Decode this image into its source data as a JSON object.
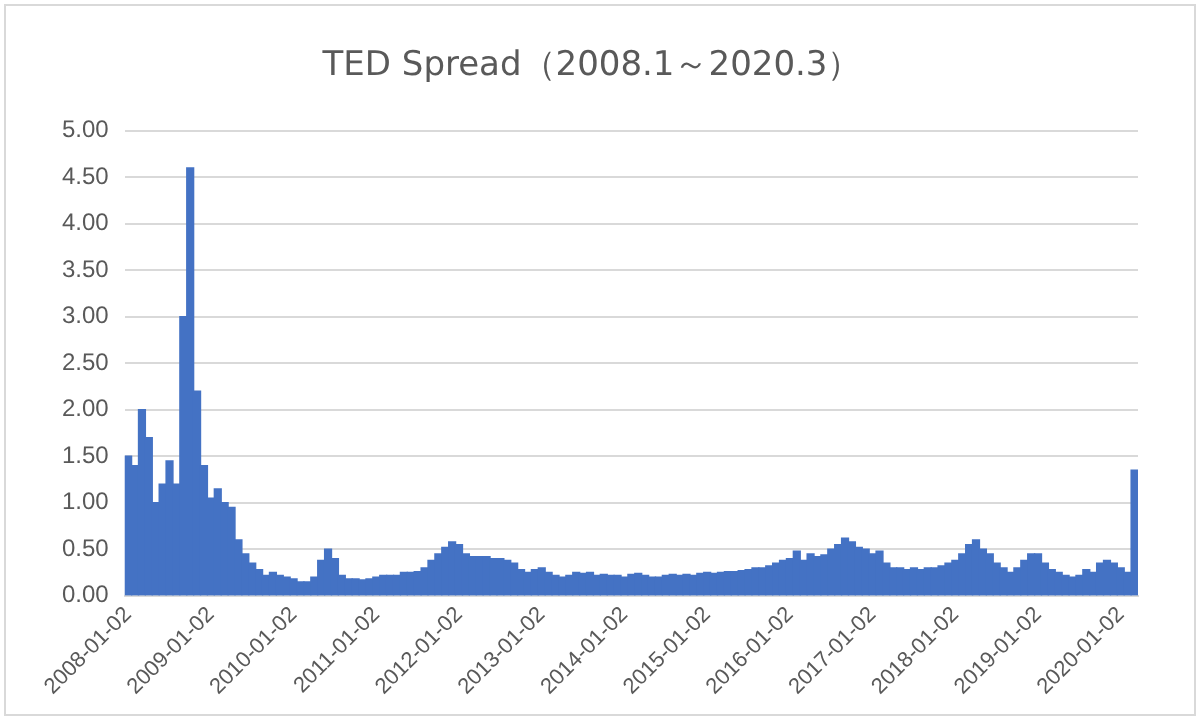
{
  "chart_data": {
    "type": "bar",
    "title": "TED Spread（2008.1～2020.3）",
    "color": "#4472c4",
    "categories": [
      "2008-01-02",
      null,
      null,
      null,
      null,
      null,
      null,
      null,
      null,
      null,
      null,
      null,
      "2009-01-02",
      null,
      null,
      null,
      null,
      null,
      null,
      null,
      null,
      null,
      null,
      null,
      "2010-01-02",
      null,
      null,
      null,
      null,
      null,
      null,
      null,
      null,
      null,
      null,
      null,
      "2011-01-02",
      null,
      null,
      null,
      null,
      null,
      null,
      null,
      null,
      null,
      null,
      null,
      "2012-01-02",
      null,
      null,
      null,
      null,
      null,
      null,
      null,
      null,
      null,
      null,
      null,
      "2013-01-02",
      null,
      null,
      null,
      null,
      null,
      null,
      null,
      null,
      null,
      null,
      null,
      "2014-01-02",
      null,
      null,
      null,
      null,
      null,
      null,
      null,
      null,
      null,
      null,
      null,
      "2015-01-02",
      null,
      null,
      null,
      null,
      null,
      null,
      null,
      null,
      null,
      null,
      null,
      "2016-01-02",
      null,
      null,
      null,
      null,
      null,
      null,
      null,
      null,
      null,
      null,
      null,
      "2017-01-02",
      null,
      null,
      null,
      null,
      null,
      null,
      null,
      null,
      null,
      null,
      null,
      "2018-01-02",
      null,
      null,
      null,
      null,
      null,
      null,
      null,
      null,
      null,
      null,
      null,
      "2019-01-02",
      null,
      null,
      null,
      null,
      null,
      null,
      null,
      null,
      null,
      null,
      null,
      "2020-01-02",
      null,
      null
    ],
    "values": [
      1.5,
      1.4,
      2.0,
      1.7,
      1.0,
      1.2,
      1.45,
      1.2,
      3.0,
      4.6,
      2.2,
      1.4,
      1.05,
      1.15,
      1.0,
      0.95,
      0.6,
      0.45,
      0.35,
      0.28,
      0.22,
      0.25,
      0.22,
      0.2,
      0.18,
      0.15,
      0.15,
      0.2,
      0.38,
      0.5,
      0.4,
      0.22,
      0.18,
      0.18,
      0.17,
      0.18,
      0.2,
      0.22,
      0.22,
      0.22,
      0.25,
      0.25,
      0.26,
      0.3,
      0.38,
      0.45,
      0.52,
      0.58,
      0.55,
      0.45,
      0.42,
      0.42,
      0.42,
      0.4,
      0.4,
      0.38,
      0.35,
      0.28,
      0.25,
      0.28,
      0.3,
      0.25,
      0.22,
      0.2,
      0.22,
      0.25,
      0.24,
      0.25,
      0.22,
      0.23,
      0.22,
      0.22,
      0.2,
      0.23,
      0.24,
      0.22,
      0.2,
      0.2,
      0.22,
      0.23,
      0.22,
      0.23,
      0.22,
      0.24,
      0.25,
      0.24,
      0.25,
      0.26,
      0.26,
      0.27,
      0.28,
      0.3,
      0.3,
      0.32,
      0.35,
      0.38,
      0.4,
      0.48,
      0.38,
      0.45,
      0.42,
      0.44,
      0.5,
      0.55,
      0.62,
      0.58,
      0.52,
      0.5,
      0.45,
      0.48,
      0.35,
      0.3,
      0.3,
      0.28,
      0.3,
      0.28,
      0.3,
      0.3,
      0.32,
      0.35,
      0.38,
      0.45,
      0.55,
      0.6,
      0.5,
      0.45,
      0.35,
      0.3,
      0.25,
      0.3,
      0.38,
      0.45,
      0.45,
      0.35,
      0.28,
      0.25,
      0.22,
      0.2,
      0.22,
      0.28,
      0.25,
      0.35,
      0.38,
      0.35,
      0.3,
      0.25,
      1.35
    ],
    "ylim": [
      0,
      5
    ],
    "yticks": [
      {
        "value": 0,
        "label": "0.00"
      },
      {
        "value": 0.5,
        "label": "0.50"
      },
      {
        "value": 1,
        "label": "1.00"
      },
      {
        "value": 1.5,
        "label": "1.50"
      },
      {
        "value": 2,
        "label": "2.00"
      },
      {
        "value": 2.5,
        "label": "2.50"
      },
      {
        "value": 3,
        "label": "3.00"
      },
      {
        "value": 3.5,
        "label": "3.50"
      },
      {
        "value": 4,
        "label": "4.00"
      },
      {
        "value": 4.5,
        "label": "4.50"
      },
      {
        "value": 5,
        "label": "5.00"
      }
    ],
    "grid": "y",
    "legend": false
  }
}
